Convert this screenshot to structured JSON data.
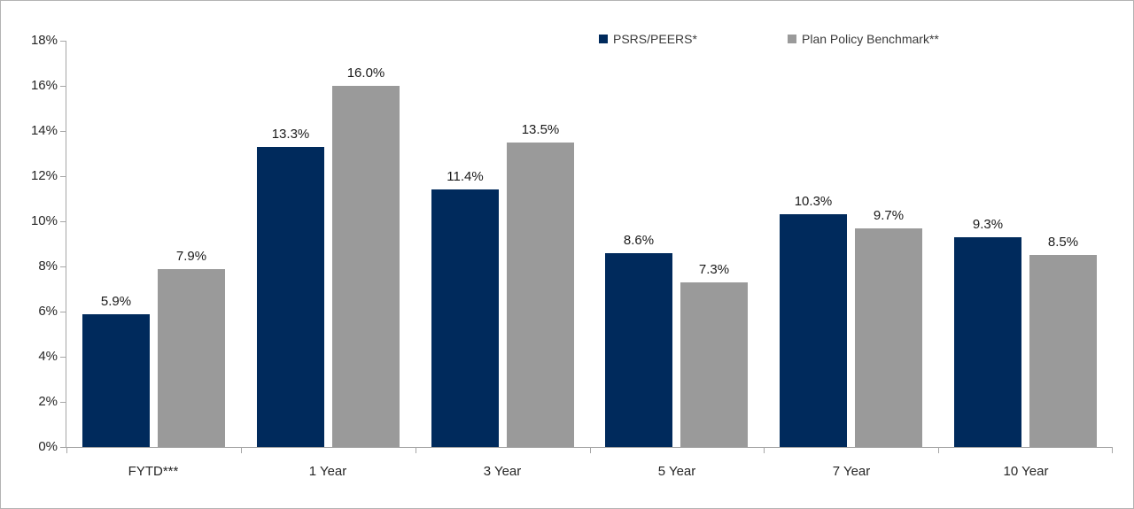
{
  "page": {
    "background": "#ffffff",
    "border_color": "#b3b3b3"
  },
  "legend": {
    "items": [
      {
        "label": "PSRS/PEERS*",
        "color": "#002a5c"
      },
      {
        "label": "Plan Policy Benchmark**",
        "color": "#9a9a9a"
      }
    ]
  },
  "chart_data": {
    "type": "bar",
    "title": "",
    "xlabel": "",
    "ylabel": "",
    "categories": [
      "FYTD***",
      "1 Year",
      "3 Year",
      "5 Year",
      "7 Year",
      "10 Year"
    ],
    "series": [
      {
        "name": "PSRS/PEERS*",
        "color": "#002a5c",
        "values": [
          5.9,
          13.3,
          11.4,
          8.6,
          10.3,
          9.3
        ],
        "labels": [
          "5.9%",
          "13.3%",
          "11.4%",
          "8.6%",
          "10.3%",
          "9.3%"
        ]
      },
      {
        "name": "Plan Policy Benchmark**",
        "color": "#9a9a9a",
        "values": [
          7.9,
          16.0,
          13.5,
          7.3,
          9.7,
          8.5
        ],
        "labels": [
          "7.9%",
          "16.0%",
          "13.5%",
          "7.3%",
          "9.7%",
          "8.5%"
        ]
      }
    ],
    "ylim": [
      0,
      18
    ],
    "ytick_step": 2,
    "ytick_labels": [
      "0%",
      "2%",
      "4%",
      "6%",
      "8%",
      "10%",
      "12%",
      "14%",
      "16%",
      "18%"
    ],
    "grid": false,
    "legend_position": "top-center",
    "axis_color": "#a6a6a6",
    "label_color": "#262626"
  }
}
